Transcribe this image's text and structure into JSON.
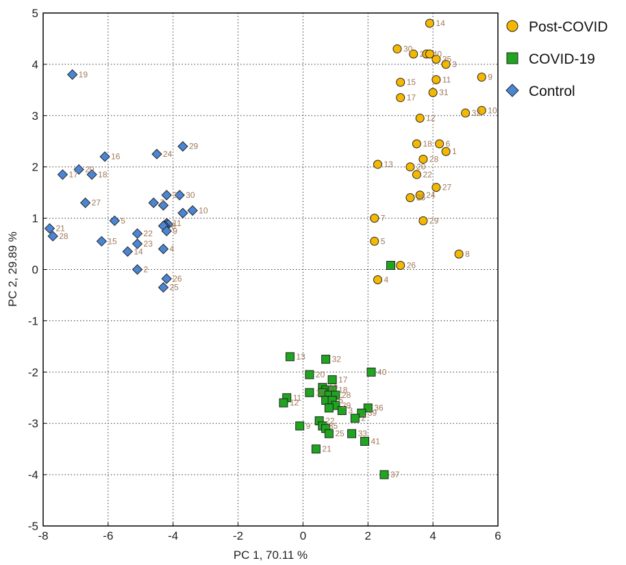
{
  "chart_data": {
    "type": "scatter",
    "xlabel": "PC 1,    70.11 %",
    "ylabel": "PC 2,    29.89 %",
    "xlim": [
      -8,
      6
    ],
    "ylim": [
      -5,
      5
    ],
    "xticks": [
      -8,
      -6,
      -4,
      -2,
      0,
      2,
      4,
      6
    ],
    "yticks": [
      -5,
      -4,
      -3,
      -2,
      -1,
      0,
      1,
      2,
      3,
      4,
      5
    ],
    "grid": true,
    "legend_position": "top-right outside",
    "series": [
      {
        "name": "Post-COVID",
        "marker": "circle",
        "color": "#f5b800",
        "points": [
          {
            "x": 3.9,
            "y": 4.8,
            "label": "14"
          },
          {
            "x": 2.9,
            "y": 4.3,
            "label": "30"
          },
          {
            "x": 3.4,
            "y": 4.2,
            "label": "2"
          },
          {
            "x": 3.8,
            "y": 4.2,
            "label": "40"
          },
          {
            "x": 3.9,
            "y": 4.2,
            "label": ""
          },
          {
            "x": 4.1,
            "y": 4.1,
            "label": "35"
          },
          {
            "x": 4.4,
            "y": 4.0,
            "label": "3"
          },
          {
            "x": 5.5,
            "y": 3.75,
            "label": "9"
          },
          {
            "x": 3.0,
            "y": 3.65,
            "label": "15"
          },
          {
            "x": 4.1,
            "y": 3.7,
            "label": "11"
          },
          {
            "x": 4.0,
            "y": 3.45,
            "label": "31"
          },
          {
            "x": 3.0,
            "y": 3.35,
            "label": "17"
          },
          {
            "x": 5.0,
            "y": 3.05,
            "label": "32"
          },
          {
            "x": 5.5,
            "y": 3.1,
            "label": "10"
          },
          {
            "x": 3.6,
            "y": 2.95,
            "label": "12"
          },
          {
            "x": 3.5,
            "y": 2.45,
            "label": "18"
          },
          {
            "x": 4.2,
            "y": 2.45,
            "label": "6"
          },
          {
            "x": 4.4,
            "y": 2.3,
            "label": "1"
          },
          {
            "x": 3.7,
            "y": 2.15,
            "label": "28"
          },
          {
            "x": 2.3,
            "y": 2.05,
            "label": "13"
          },
          {
            "x": 3.3,
            "y": 2.0,
            "label": "20"
          },
          {
            "x": 3.5,
            "y": 1.85,
            "label": "22"
          },
          {
            "x": 4.1,
            "y": 1.6,
            "label": "27"
          },
          {
            "x": 3.6,
            "y": 1.45,
            "label": "24"
          },
          {
            "x": 3.3,
            "y": 1.4,
            "label": "25"
          },
          {
            "x": 2.2,
            "y": 1.0,
            "label": "7"
          },
          {
            "x": 3.7,
            "y": 0.95,
            "label": "29"
          },
          {
            "x": 2.2,
            "y": 0.55,
            "label": "5"
          },
          {
            "x": 4.8,
            "y": 0.3,
            "label": "8"
          },
          {
            "x": 3.0,
            "y": 0.08,
            "label": "26"
          },
          {
            "x": 2.3,
            "y": -0.2,
            "label": "4"
          }
        ]
      },
      {
        "name": "COVID-19",
        "marker": "square",
        "color": "#1fa51f",
        "points": [
          {
            "x": 2.7,
            "y": 0.08,
            "label": ""
          },
          {
            "x": -0.4,
            "y": -1.7,
            "label": "13"
          },
          {
            "x": 0.7,
            "y": -1.75,
            "label": "32"
          },
          {
            "x": 2.1,
            "y": -2.0,
            "label": "40"
          },
          {
            "x": 0.2,
            "y": -2.05,
            "label": "20"
          },
          {
            "x": 0.9,
            "y": -2.15,
            "label": "17"
          },
          {
            "x": 0.6,
            "y": -2.3,
            "label": "19"
          },
          {
            "x": 0.7,
            "y": -2.35,
            "label": ""
          },
          {
            "x": 0.9,
            "y": -2.35,
            "label": "18"
          },
          {
            "x": 0.2,
            "y": -2.4,
            "label": "10"
          },
          {
            "x": 0.6,
            "y": -2.4,
            "label": ""
          },
          {
            "x": 0.8,
            "y": -2.45,
            "label": ""
          },
          {
            "x": 1.0,
            "y": -2.45,
            "label": "28"
          },
          {
            "x": 0.7,
            "y": -2.55,
            "label": ""
          },
          {
            "x": 0.9,
            "y": -2.55,
            "label": "6"
          },
          {
            "x": -0.5,
            "y": -2.5,
            "label": "11"
          },
          {
            "x": -0.6,
            "y": -2.6,
            "label": "12"
          },
          {
            "x": 1.0,
            "y": -2.65,
            "label": "29"
          },
          {
            "x": 0.8,
            "y": -2.7,
            "label": ""
          },
          {
            "x": 1.2,
            "y": -2.75,
            "label": "3"
          },
          {
            "x": 2.0,
            "y": -2.7,
            "label": "36"
          },
          {
            "x": 1.8,
            "y": -2.8,
            "label": "39"
          },
          {
            "x": 1.6,
            "y": -2.9,
            "label": "2"
          },
          {
            "x": 0.5,
            "y": -2.95,
            "label": "22"
          },
          {
            "x": -0.1,
            "y": -3.05,
            "label": "9"
          },
          {
            "x": 0.6,
            "y": -3.05,
            "label": "35"
          },
          {
            "x": 0.7,
            "y": -3.1,
            "label": ""
          },
          {
            "x": 0.8,
            "y": -3.2,
            "label": "25"
          },
          {
            "x": 1.5,
            "y": -3.2,
            "label": "33"
          },
          {
            "x": 1.9,
            "y": -3.35,
            "label": "41"
          },
          {
            "x": 0.4,
            "y": -3.5,
            "label": "21"
          },
          {
            "x": 2.5,
            "y": -4.0,
            "label": "37"
          }
        ]
      },
      {
        "name": "Control",
        "marker": "diamond",
        "color": "#4a86d4",
        "points": [
          {
            "x": -7.1,
            "y": 3.8,
            "label": "19"
          },
          {
            "x": -3.7,
            "y": 2.4,
            "label": "29"
          },
          {
            "x": -4.5,
            "y": 2.25,
            "label": "24"
          },
          {
            "x": -6.1,
            "y": 2.2,
            "label": "16"
          },
          {
            "x": -6.9,
            "y": 1.95,
            "label": "20"
          },
          {
            "x": -6.5,
            "y": 1.85,
            "label": "18"
          },
          {
            "x": -7.4,
            "y": 1.85,
            "label": "17"
          },
          {
            "x": -3.8,
            "y": 1.45,
            "label": "30"
          },
          {
            "x": -4.2,
            "y": 1.45,
            "label": "3"
          },
          {
            "x": -6.7,
            "y": 1.3,
            "label": "27"
          },
          {
            "x": -4.6,
            "y": 1.3,
            "label": "7"
          },
          {
            "x": -4.3,
            "y": 1.25,
            "label": ""
          },
          {
            "x": -3.4,
            "y": 1.15,
            "label": "10"
          },
          {
            "x": -3.7,
            "y": 1.1,
            "label": ""
          },
          {
            "x": -5.8,
            "y": 0.95,
            "label": "5"
          },
          {
            "x": -4.2,
            "y": 0.9,
            "label": "11"
          },
          {
            "x": -4.15,
            "y": 0.88,
            "label": ""
          },
          {
            "x": -4.25,
            "y": 0.85,
            "label": "8"
          },
          {
            "x": -4.3,
            "y": 0.85,
            "label": ""
          },
          {
            "x": -4.2,
            "y": 0.75,
            "label": "9"
          },
          {
            "x": -7.8,
            "y": 0.8,
            "label": "21"
          },
          {
            "x": -5.1,
            "y": 0.7,
            "label": "22"
          },
          {
            "x": -7.7,
            "y": 0.65,
            "label": "28"
          },
          {
            "x": -6.2,
            "y": 0.55,
            "label": "15"
          },
          {
            "x": -5.1,
            "y": 0.5,
            "label": "23"
          },
          {
            "x": -4.3,
            "y": 0.4,
            "label": "4"
          },
          {
            "x": -5.4,
            "y": 0.35,
            "label": "14"
          },
          {
            "x": -5.1,
            "y": 0.0,
            "label": "2"
          },
          {
            "x": -4.2,
            "y": -0.18,
            "label": "26"
          },
          {
            "x": -4.3,
            "y": -0.35,
            "label": "25"
          }
        ]
      }
    ]
  }
}
